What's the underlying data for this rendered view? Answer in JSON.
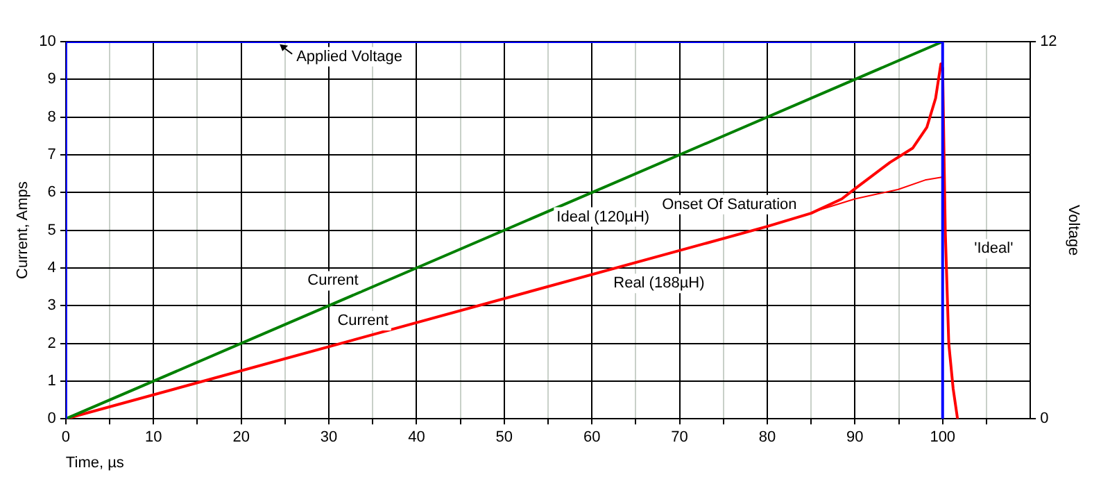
{
  "chart_data": {
    "type": "line",
    "xlabel": "Time, µs",
    "ylabel": "Current, Amps",
    "y2label": "Voltage",
    "xlim": [
      0,
      110
    ],
    "xticks": [
      0,
      {
        "value": 5,
        "label": null
      },
      10,
      {
        "value": 15,
        "label": null
      },
      20,
      {
        "value": 25,
        "label": null
      },
      30,
      {
        "value": 35,
        "label": null
      },
      40,
      {
        "value": 45,
        "label": null
      },
      50,
      {
        "value": 55,
        "label": null
      },
      60,
      {
        "value": 65,
        "label": null
      },
      70,
      {
        "value": 75,
        "label": null
      },
      80,
      {
        "value": 85,
        "label": null
      },
      90,
      {
        "value": 95,
        "label": null
      },
      100,
      {
        "value": 105,
        "label": null
      }
    ],
    "ylim": [
      0,
      10
    ],
    "yticks": [
      0,
      1,
      2,
      3,
      4,
      5,
      6,
      7,
      8,
      9,
      10
    ],
    "y2lim": [
      0,
      12
    ],
    "y2ticks": [
      0,
      12
    ],
    "grid": true,
    "legend": false,
    "marker": "none",
    "line_style": "solid",
    "series": [
      {
        "color": "#0000ff",
        "axis": "y2",
        "x": [
          0,
          0,
          100,
          100
        ],
        "values": [
          0,
          12,
          12,
          0
        ]
      },
      {
        "color": "#008000",
        "x": [
          0,
          100
        ],
        "values": [
          0,
          10
        ]
      },
      {
        "color": "#ff0000",
        "x": [
          0,
          80,
          85,
          88.5,
          90,
          92,
          94,
          96.6,
          98.2,
          99.2,
          99.8,
          100,
          100.3,
          100.7,
          101.2,
          101.7
        ],
        "values": [
          0,
          5.1,
          5.45,
          5.83,
          6.1,
          6.45,
          6.8,
          7.18,
          7.73,
          8.5,
          9.41,
          9.3,
          5,
          2,
          0.8,
          0
        ]
      },
      {
        "color": "#ff0000",
        "x": [
          85.4,
          90,
          94.9,
          98,
          100
        ],
        "values": [
          5.5,
          5.83,
          6.08,
          6.33,
          6.41
        ]
      }
    ],
    "annotations": [
      "Applied Voltage",
      "Ideal (120µH)",
      "Onset Of Saturation",
      "'Ideal'",
      "Current",
      "Current",
      "Real (188µH)"
    ]
  }
}
